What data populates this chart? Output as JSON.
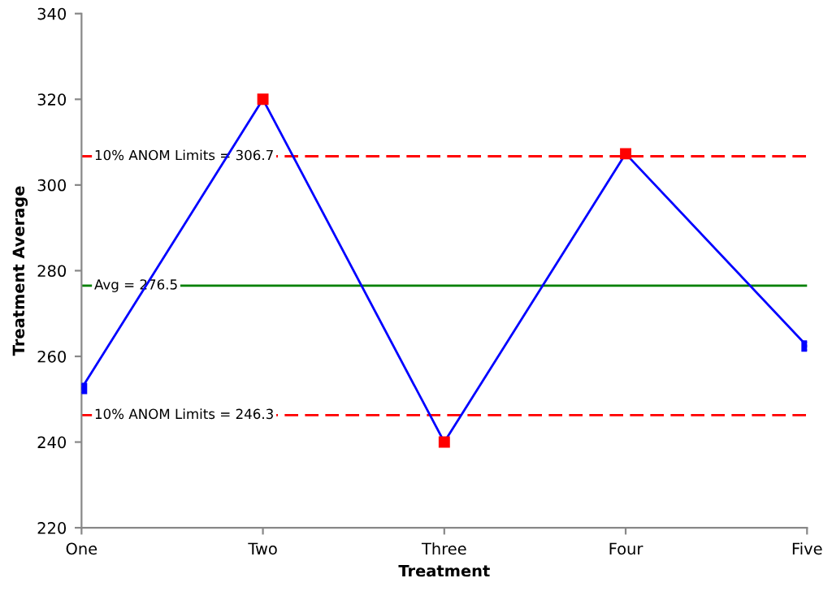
{
  "chart_data": {
    "type": "line",
    "xlabel": "Treatment",
    "ylabel": "Treatment Average",
    "categories": [
      "One",
      "Two",
      "Three",
      "Four",
      "Five"
    ],
    "series": [
      {
        "color": "#0000ff",
        "values": [
          252.5,
          320,
          240,
          307.3,
          262.4
        ],
        "colors": [
          "#0000ff",
          "#ff0000",
          "#ff0000",
          "#ff0000",
          "#0000ff"
        ]
      }
    ],
    "marker": "square",
    "line_style": "solid",
    "ylim": [
      220,
      340
    ],
    "yticks": [
      220,
      240,
      260,
      280,
      300,
      320,
      340
    ],
    "grid": false,
    "legend": false,
    "ref_lines": [
      {
        "axis": "y",
        "value": 306.7,
        "label": "10% ANOM Limits = 306.7",
        "color": "#ff0000",
        "line_style": "dashed"
      },
      {
        "axis": "y",
        "value": 276.5,
        "label": "Avg = 276.5",
        "color": "#008000",
        "line_style": "solid"
      },
      {
        "axis": "y",
        "value": 246.3,
        "label": "10% ANOM Limits = 246.3",
        "color": "#ff0000",
        "line_style": "dashed"
      }
    ]
  }
}
